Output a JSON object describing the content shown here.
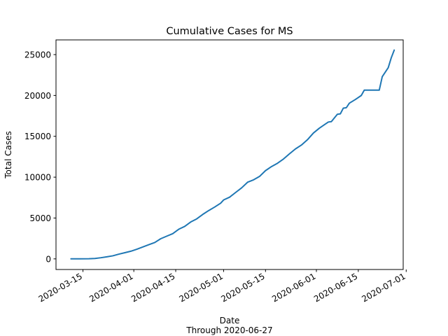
{
  "chart_data": {
    "type": "line",
    "title": "Cumulative Cases for MS",
    "xlabel": "Date",
    "xlabel_note": "Through 2020-06-27",
    "ylabel": "Total Cases",
    "xlim": [
      "2020-03-06",
      "2020-06-30"
    ],
    "ylim": [
      -1300,
      26800
    ],
    "x_ticks": [
      "2020-03-15",
      "2020-04-01",
      "2020-04-15",
      "2020-05-01",
      "2020-05-15",
      "2020-06-01",
      "2020-06-15",
      "2020-07-01"
    ],
    "y_ticks": [
      0,
      5000,
      10000,
      15000,
      20000,
      25000
    ],
    "grid": false,
    "series": [
      {
        "color": "#1f77b4",
        "points": [
          [
            "2020-03-11",
            1
          ],
          [
            "2020-03-14",
            6
          ],
          [
            "2020-03-17",
            21
          ],
          [
            "2020-03-19",
            50
          ],
          [
            "2020-03-21",
            140
          ],
          [
            "2020-03-23",
            249
          ],
          [
            "2020-03-25",
            377
          ],
          [
            "2020-03-27",
            579
          ],
          [
            "2020-03-29",
            758
          ],
          [
            "2020-03-31",
            937
          ],
          [
            "2020-04-02",
            1177
          ],
          [
            "2020-04-04",
            1455
          ],
          [
            "2020-04-06",
            1738
          ],
          [
            "2020-04-08",
            2003
          ],
          [
            "2020-04-10",
            2469
          ],
          [
            "2020-04-12",
            2781
          ],
          [
            "2020-04-14",
            3087
          ],
          [
            "2020-04-16",
            3624
          ],
          [
            "2020-04-18",
            3974
          ],
          [
            "2020-04-20",
            4512
          ],
          [
            "2020-04-22",
            4894
          ],
          [
            "2020-04-24",
            5434
          ],
          [
            "2020-04-26",
            5911
          ],
          [
            "2020-04-28",
            6342
          ],
          [
            "2020-04-30",
            6815
          ],
          [
            "2020-05-01",
            7212
          ],
          [
            "2020-05-03",
            7550
          ],
          [
            "2020-05-05",
            8123
          ],
          [
            "2020-05-07",
            8686
          ],
          [
            "2020-05-09",
            9378
          ],
          [
            "2020-05-11",
            9674
          ],
          [
            "2020-05-13",
            10090
          ],
          [
            "2020-05-15",
            10801
          ],
          [
            "2020-05-17",
            11296
          ],
          [
            "2020-05-19",
            11704
          ],
          [
            "2020-05-21",
            12222
          ],
          [
            "2020-05-23",
            12855
          ],
          [
            "2020-05-25",
            13458
          ],
          [
            "2020-05-27",
            13931
          ],
          [
            "2020-05-29",
            14577
          ],
          [
            "2020-05-31",
            15400
          ],
          [
            "2020-06-02",
            16000
          ],
          [
            "2020-06-04",
            16500
          ],
          [
            "2020-06-05",
            16750
          ],
          [
            "2020-06-06",
            16800
          ],
          [
            "2020-06-08",
            17700
          ],
          [
            "2020-06-09",
            17750
          ],
          [
            "2020-06-10",
            18450
          ],
          [
            "2020-06-11",
            18500
          ],
          [
            "2020-06-12",
            19050
          ],
          [
            "2020-06-14",
            19500
          ],
          [
            "2020-06-16",
            20000
          ],
          [
            "2020-06-17",
            20650
          ],
          [
            "2020-06-22",
            20650
          ],
          [
            "2020-06-23",
            22300
          ],
          [
            "2020-06-25",
            23400
          ],
          [
            "2020-06-26",
            24600
          ],
          [
            "2020-06-27",
            25550
          ]
        ]
      }
    ]
  }
}
